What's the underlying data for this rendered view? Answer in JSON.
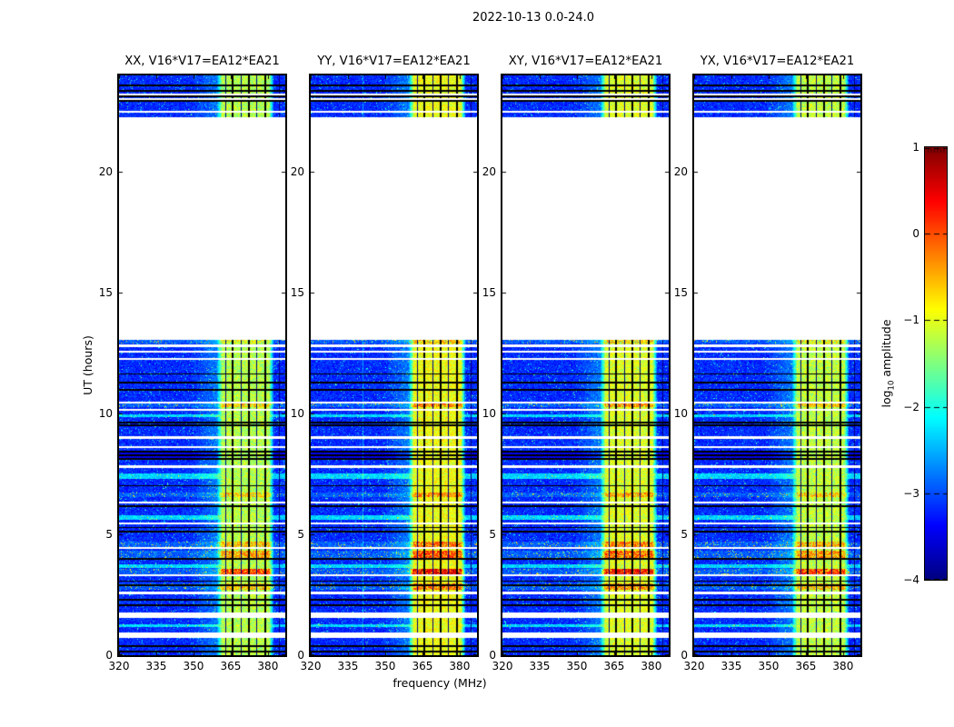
{
  "figure": {
    "suptitle": "2022-10-13 0.0-24.0",
    "background": "#ffffff"
  },
  "axes": {
    "xlabel": "frequency (MHz)",
    "ylabel": "UT (hours)",
    "xtick_labels": [
      "320",
      "335",
      "350",
      "365",
      "380"
    ],
    "ytick_labels": [
      "0",
      "5",
      "10",
      "15",
      "20"
    ]
  },
  "colorbar": {
    "label_log": "log",
    "label_sub": "10",
    "label_amp": "amplitude",
    "tick_labels": [
      "1",
      "0",
      "−1",
      "−2",
      "−3",
      "−4"
    ]
  },
  "chart_data": {
    "type": "heatmap",
    "title": "2022-10-13 0.0-24.0",
    "xlabel": "frequency (MHz)",
    "ylabel": "UT (hours)",
    "xlim": [
      320,
      387
    ],
    "ylim": [
      0,
      24
    ],
    "xticks": [
      320,
      335,
      350,
      365,
      380
    ],
    "yticks": [
      0,
      5,
      10,
      15,
      20
    ],
    "colormap": "jet",
    "colorbar_label": "log10 amplitude",
    "colorbar_ticks": [
      1,
      0,
      -1,
      -2,
      -3,
      -4
    ],
    "value_range": [
      -4,
      1
    ],
    "panels": [
      {
        "title": "XX, V16*V17=EA12*EA21",
        "band_level": -1.25,
        "burst_boost": 0.0,
        "seed": 101,
        "pale_channels": []
      },
      {
        "title": "YY, V16*V17=EA12*EA21",
        "band_level": -0.95,
        "burst_boost": 0.4,
        "seed": 202,
        "pale_channels": [
          340.9
        ]
      },
      {
        "title": "XY, V16*V17=EA12*EA21",
        "band_level": -1.05,
        "burst_boost": 0.3,
        "seed": 303,
        "pale_channels": []
      },
      {
        "title": "YX, V16*V17=EA12*EA21",
        "band_level": -1.2,
        "burst_boost": 0.05,
        "seed": 404,
        "pale_channels": []
      }
    ],
    "observation_blocks_hours": [
      [
        0,
        13.05
      ],
      [
        22.27,
        24
      ]
    ],
    "background_level": -3.4,
    "rfi_band": {
      "f0": 360.5,
      "f1": 381.5
    },
    "flagged_channels_strong": [
      365.9,
      372.4,
      379.0
    ],
    "flagged_channels_weak": [
      362.9,
      369.3,
      375.6,
      384.6
    ],
    "time_features": [
      {
        "t0": 23.56,
        "t1": 23.63,
        "type": "black"
      },
      {
        "t0": 23.33,
        "t1": 23.4,
        "type": "black"
      },
      {
        "t0": 23.18,
        "t1": 23.26,
        "type": "white"
      },
      {
        "t0": 23.08,
        "t1": 23.16,
        "type": "black"
      },
      {
        "t0": 22.99,
        "t1": 23.07,
        "type": "white"
      },
      {
        "t0": 22.92,
        "t1": 22.98,
        "type": "black"
      },
      {
        "t0": 22.46,
        "t1": 22.53,
        "type": "white"
      },
      {
        "t0": 12.92,
        "t1": 13.05,
        "type": "burst",
        "level": -0.85
      },
      {
        "t0": 12.77,
        "t1": 12.85,
        "type": "white"
      },
      {
        "t0": 12.53,
        "t1": 12.61,
        "type": "white"
      },
      {
        "t0": 12.23,
        "t1": 12.31,
        "type": "white"
      },
      {
        "t0": 11.62,
        "t1": 11.68,
        "type": "black"
      },
      {
        "t0": 11.25,
        "t1": 11.32,
        "type": "black"
      },
      {
        "t0": 10.94,
        "t1": 11.01,
        "type": "black"
      },
      {
        "t0": 10.42,
        "t1": 10.5,
        "type": "white"
      },
      {
        "t0": 10.27,
        "t1": 10.42,
        "type": "burst",
        "level": -0.55
      },
      {
        "t0": 10.11,
        "t1": 10.21,
        "type": "white"
      },
      {
        "t0": 9.85,
        "t1": 9.95,
        "type": "bright"
      },
      {
        "t0": 9.61,
        "t1": 9.68,
        "type": "black"
      },
      {
        "t0": 9.47,
        "t1": 9.54,
        "type": "black"
      },
      {
        "t0": 8.97,
        "t1": 9.05,
        "type": "white"
      },
      {
        "t0": 8.57,
        "t1": 8.65,
        "type": "white"
      },
      {
        "t0": 8.39,
        "t1": 8.47,
        "type": "black"
      },
      {
        "t0": 8.33,
        "t1": 8.39,
        "type": "dark"
      },
      {
        "t0": 8.25,
        "t1": 8.33,
        "type": "black"
      },
      {
        "t0": 8.17,
        "t1": 8.25,
        "type": "dark"
      },
      {
        "t0": 8.09,
        "t1": 8.17,
        "type": "black"
      },
      {
        "t0": 7.75,
        "t1": 7.85,
        "type": "white"
      },
      {
        "t0": 7.31,
        "t1": 7.51,
        "type": "bright"
      },
      {
        "t0": 6.99,
        "t1": 7.05,
        "type": "black"
      },
      {
        "t0": 6.54,
        "t1": 6.74,
        "type": "burst",
        "level": -0.6
      },
      {
        "t0": 6.29,
        "t1": 6.37,
        "type": "white"
      },
      {
        "t0": 6.15,
        "t1": 6.22,
        "type": "black"
      },
      {
        "t0": 5.59,
        "t1": 5.79,
        "type": "bright"
      },
      {
        "t0": 5.43,
        "t1": 5.51,
        "type": "white"
      },
      {
        "t0": 5.25,
        "t1": 5.32,
        "type": "black"
      },
      {
        "t0": 5.07,
        "t1": 5.14,
        "type": "black"
      },
      {
        "t0": 4.49,
        "t1": 4.71,
        "type": "burst",
        "level": -0.45
      },
      {
        "t0": 4.39,
        "t1": 4.47,
        "type": "white"
      },
      {
        "t0": 4.04,
        "t1": 4.34,
        "type": "burst",
        "level": -0.3
      },
      {
        "t0": 3.94,
        "t1": 4.01,
        "type": "black"
      },
      {
        "t0": 3.61,
        "t1": 3.77,
        "type": "bright"
      },
      {
        "t0": 3.34,
        "t1": 3.59,
        "type": "burst",
        "level": 0.15
      },
      {
        "t0": 3.26,
        "t1": 3.34,
        "type": "white"
      },
      {
        "t0": 3.03,
        "t1": 3.1,
        "type": "black"
      },
      {
        "t0": 2.71,
        "t1": 2.99,
        "type": "burst",
        "level": -0.5
      },
      {
        "t0": 2.87,
        "t1": 2.94,
        "type": "black"
      },
      {
        "t0": 2.53,
        "t1": 2.65,
        "type": "white"
      },
      {
        "t0": 2.27,
        "t1": 2.34,
        "type": "black"
      },
      {
        "t0": 2.03,
        "t1": 2.1,
        "type": "black"
      },
      {
        "t0": 1.54,
        "t1": 1.75,
        "type": "white"
      },
      {
        "t0": 1.17,
        "t1": 1.29,
        "type": "bright"
      },
      {
        "t0": 0.71,
        "t1": 0.93,
        "type": "white"
      },
      {
        "t0": 0.33,
        "t1": 0.4,
        "type": "black"
      },
      {
        "t0": 0.13,
        "t1": 0.19,
        "type": "black"
      }
    ]
  }
}
